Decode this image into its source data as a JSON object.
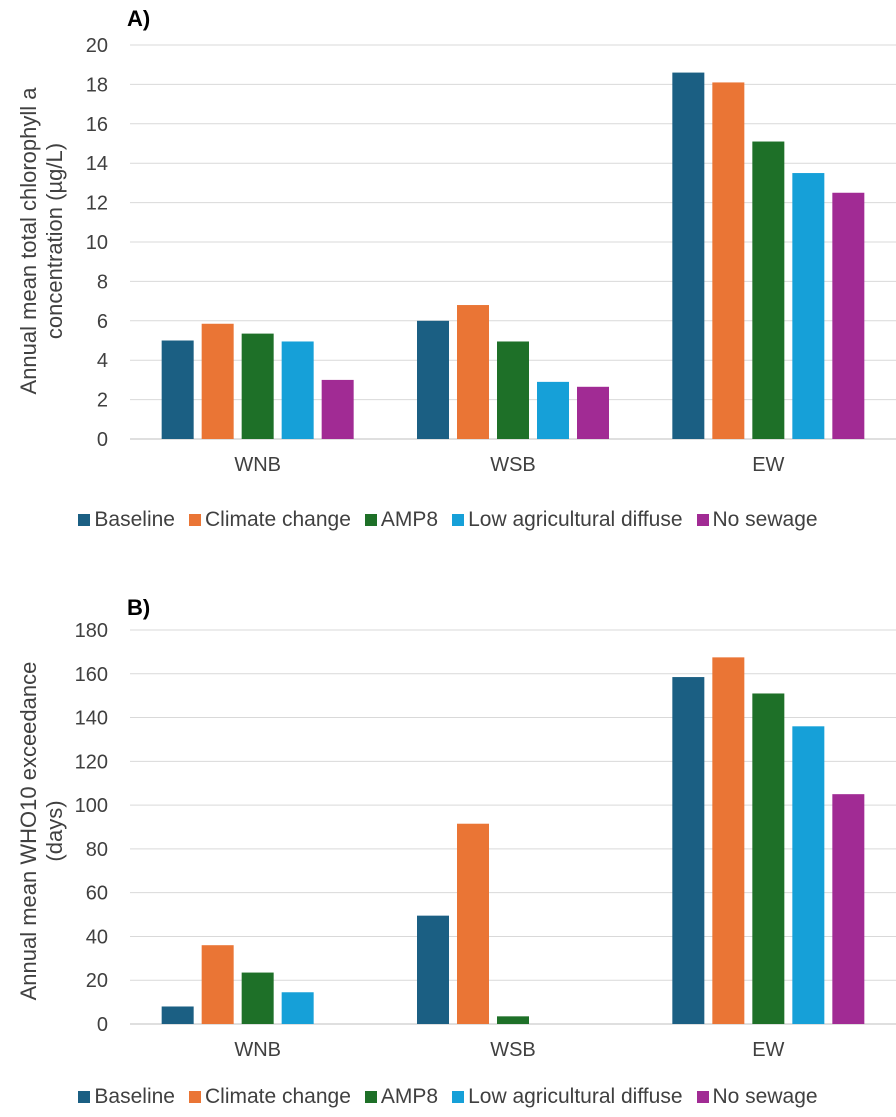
{
  "colors": {
    "Baseline": "#1b5f83",
    "Climate change": "#ea7535",
    "AMP8": "#1e7028",
    "Low agricultural diffuse": "#16a0d8",
    "No sewage": "#a12b94"
  },
  "chart_data": [
    {
      "type": "bar",
      "title": "A)",
      "ylabel_line1": "Annual mean total chlorophyll a",
      "ylabel_line2": "concentration (µg/L)",
      "categories": [
        "WNB",
        "WSB",
        "EW"
      ],
      "ylim": [
        0,
        20
      ],
      "yticks": [
        0,
        2,
        4,
        6,
        8,
        10,
        12,
        14,
        16,
        18,
        20
      ],
      "grid": true,
      "legend_position": "bottom",
      "series": [
        {
          "name": "Baseline",
          "values": [
            5.0,
            6.0,
            18.6
          ]
        },
        {
          "name": "Climate change",
          "values": [
            5.85,
            6.8,
            18.1
          ]
        },
        {
          "name": "AMP8",
          "values": [
            5.35,
            4.95,
            15.1
          ]
        },
        {
          "name": "Low agricultural diffuse",
          "values": [
            4.95,
            2.9,
            13.5
          ]
        },
        {
          "name": "No sewage",
          "values": [
            3.0,
            2.65,
            12.5
          ]
        }
      ]
    },
    {
      "type": "bar",
      "title": "B)",
      "ylabel_line1": "Annual mean WHO10 exceedance",
      "ylabel_line2": "(days)",
      "categories": [
        "WNB",
        "WSB",
        "EW"
      ],
      "ylim": [
        0,
        180
      ],
      "yticks": [
        0,
        20,
        40,
        60,
        80,
        100,
        120,
        140,
        160,
        180
      ],
      "grid": true,
      "legend_position": "bottom",
      "series": [
        {
          "name": "Baseline",
          "values": [
            8,
            49.5,
            158.5
          ]
        },
        {
          "name": "Climate change",
          "values": [
            36,
            91.5,
            167.5
          ]
        },
        {
          "name": "AMP8",
          "values": [
            23.5,
            3.5,
            151
          ]
        },
        {
          "name": "Low agricultural diffuse",
          "values": [
            14.5,
            0,
            136
          ]
        },
        {
          "name": "No sewage",
          "values": [
            0,
            0,
            105
          ]
        }
      ]
    }
  ]
}
